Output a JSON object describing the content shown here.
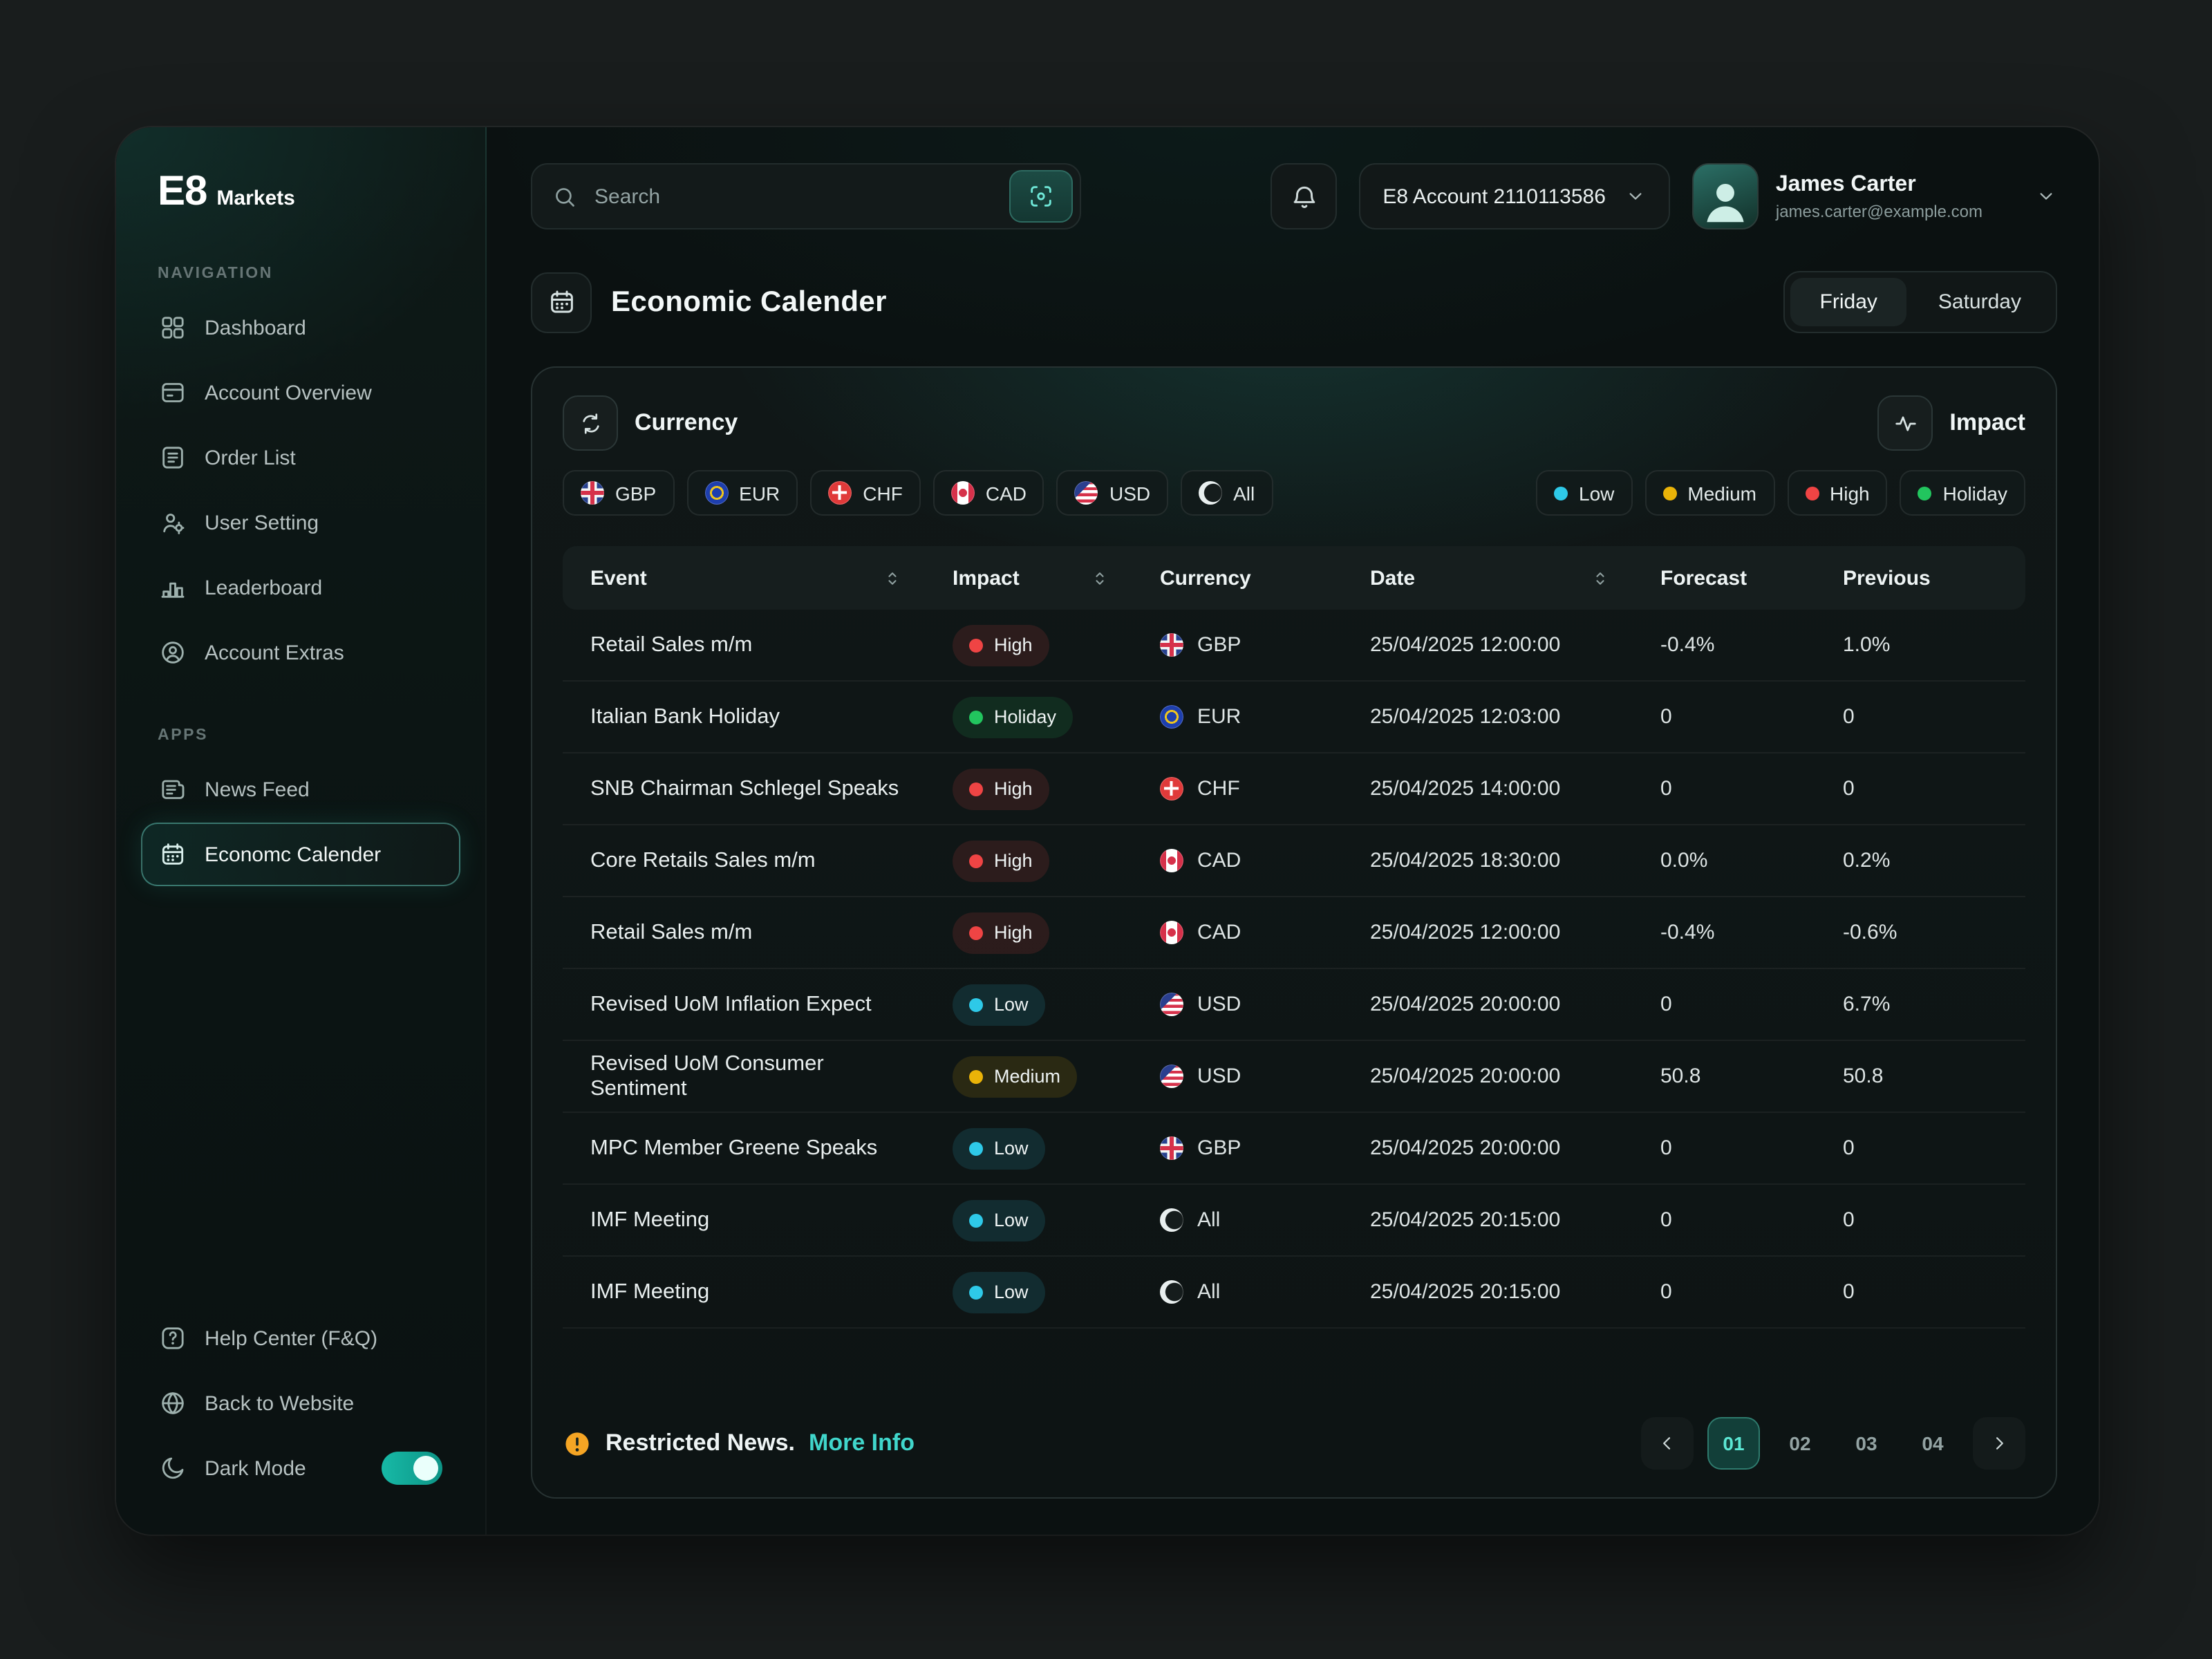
{
  "brand": {
    "logo": "E8",
    "name": "Markets"
  },
  "sidebar": {
    "section_navigation": "NAVIGATION",
    "section_apps": "APPS",
    "nav_items": [
      {
        "label": "Dashboard",
        "icon": "dashboard"
      },
      {
        "label": "Account Overview",
        "icon": "account-overview"
      },
      {
        "label": "Order List",
        "icon": "order-list"
      },
      {
        "label": "User Setting",
        "icon": "user-setting"
      },
      {
        "label": "Leaderboard",
        "icon": "leaderboard"
      },
      {
        "label": "Account Extras",
        "icon": "account-extras"
      }
    ],
    "apps_items": [
      {
        "label": "News Feed",
        "icon": "news-feed"
      },
      {
        "label": "Economc Calender",
        "icon": "calendar",
        "active": true
      }
    ],
    "footer_items": [
      {
        "label": "Help Center (F&Q)",
        "icon": "help"
      },
      {
        "label": "Back to Website",
        "icon": "back"
      },
      {
        "label": "Dark Mode",
        "icon": "moon",
        "toggle": true,
        "toggle_on": true
      }
    ]
  },
  "topbar": {
    "search_placeholder": "Search",
    "account_selector_label": "E8 Account 2110113586",
    "user_name": "James Carter",
    "user_email": "james.carter@example.com"
  },
  "page": {
    "title": "Economic Calender",
    "days": [
      "Friday",
      "Saturday"
    ],
    "active_day": "Friday"
  },
  "filters": {
    "currency_label": "Currency",
    "impact_label": "Impact",
    "currencies": [
      "GBP",
      "EUR",
      "CHF",
      "CAD",
      "USD",
      "All"
    ],
    "impact_levels": [
      "Low",
      "Medium",
      "High",
      "Holiday"
    ]
  },
  "impact_colors": {
    "Low": "#2ec9e8",
    "Medium": "#eab308",
    "High": "#ef4444",
    "Holiday": "#22c55e"
  },
  "table": {
    "headers": [
      {
        "label": "Event",
        "sortable": true
      },
      {
        "label": "Impact",
        "sortable": true
      },
      {
        "label": "Currency",
        "sortable": false
      },
      {
        "label": "Date",
        "sortable": true
      },
      {
        "label": "Forecast",
        "sortable": false
      },
      {
        "label": "Previous",
        "sortable": false
      }
    ],
    "rows": [
      {
        "event": "Retail Sales m/m",
        "impact": "High",
        "currency": "GBP",
        "date": "25/04/2025 12:00:00",
        "forecast": "-0.4%",
        "previous": "1.0%"
      },
      {
        "event": "Italian Bank Holiday",
        "impact": "Holiday",
        "currency": "EUR",
        "date": "25/04/2025 12:03:00",
        "forecast": "0",
        "previous": "0"
      },
      {
        "event": "SNB Chairman Schlegel Speaks",
        "impact": "High",
        "currency": "CHF",
        "date": "25/04/2025 14:00:00",
        "forecast": "0",
        "previous": "0"
      },
      {
        "event": "Core Retails Sales m/m",
        "impact": "High",
        "currency": "CAD",
        "date": "25/04/2025 18:30:00",
        "forecast": "0.0%",
        "previous": "0.2%"
      },
      {
        "event": "Retail Sales m/m",
        "impact": "High",
        "currency": "CAD",
        "date": "25/04/2025 12:00:00",
        "forecast": "-0.4%",
        "previous": "-0.6%"
      },
      {
        "event": "Revised UoM Inflation Expect",
        "impact": "Low",
        "currency": "USD",
        "date": "25/04/2025 20:00:00",
        "forecast": "0",
        "previous": "6.7%"
      },
      {
        "event": "Revised UoM Consumer Sentiment",
        "impact": "Medium",
        "currency": "USD",
        "date": "25/04/2025 20:00:00",
        "forecast": "50.8",
        "previous": "50.8"
      },
      {
        "event": "MPC Member Greene Speaks",
        "impact": "Low",
        "currency": "GBP",
        "date": "25/04/2025 20:00:00",
        "forecast": "0",
        "previous": "0"
      },
      {
        "event": "IMF Meeting",
        "impact": "Low",
        "currency": "All",
        "date": "25/04/2025 20:15:00",
        "forecast": "0",
        "previous": "0"
      },
      {
        "event": "IMF Meeting",
        "impact": "Low",
        "currency": "All",
        "date": "25/04/2025 20:15:00",
        "forecast": "0",
        "previous": "0"
      }
    ]
  },
  "footer": {
    "restricted_text": "Restricted News.",
    "more_info_label": "More Info",
    "pages": [
      "01",
      "02",
      "03",
      "04"
    ],
    "active_page": "01"
  },
  "accent": "#35e0cf"
}
